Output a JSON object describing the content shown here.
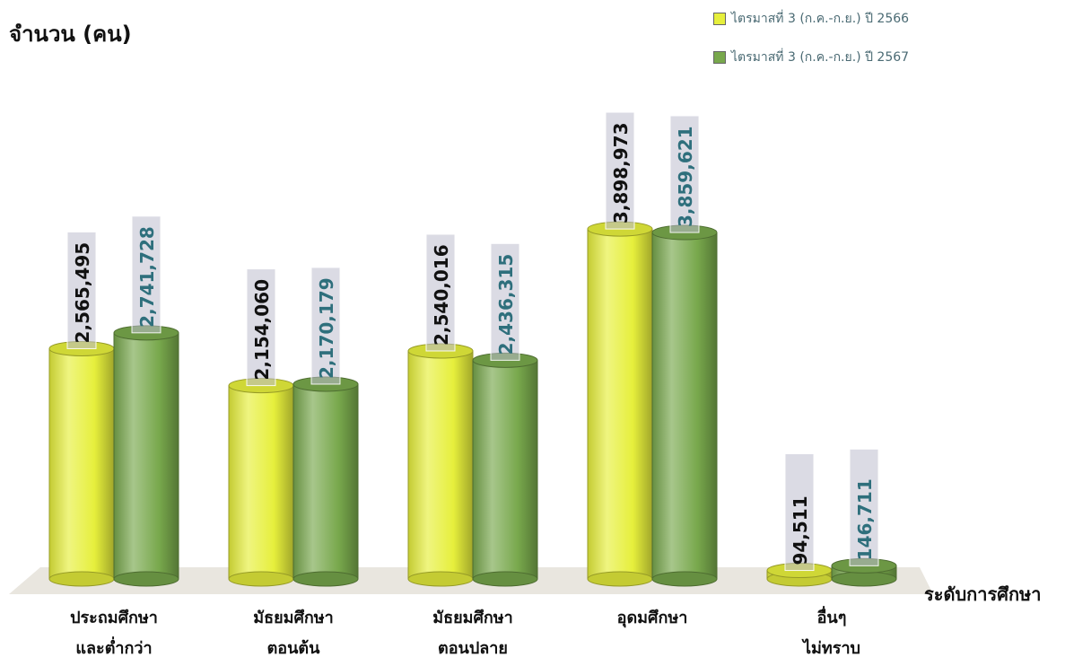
{
  "chart_data": {
    "type": "bar",
    "ylabel": "จำนวน (คน)",
    "xlabel": "ระดับการศึกษา",
    "categories": [
      [
        "ประถมศึกษา",
        "และต่ำกว่า"
      ],
      [
        "มัธยมศึกษา",
        "ตอนต้น"
      ],
      [
        "มัธยมศึกษา",
        "ตอนปลาย"
      ],
      [
        "อุดมศึกษา"
      ],
      [
        "อื่นๆ",
        "ไม่ทราบ"
      ]
    ],
    "series": [
      {
        "name": "ไตรมาสที่ 3 (ก.ค.-ก.ย.) ปี 2566",
        "color": "#e6ef3c",
        "label_color": "#111111",
        "values": [
          2565495,
          2154060,
          2540016,
          3898973,
          94511
        ],
        "labels": [
          "2,565,495",
          "2,154,060",
          "2,540,016",
          "3,898,973",
          "94,511"
        ]
      },
      {
        "name": "ไตรมาสที่ 3 (ก.ค.-ก.ย.) ปี 2567",
        "color": "#78a84c",
        "label_color": "#2e6f7c",
        "values": [
          2741728,
          2170179,
          2436315,
          3859621,
          146711
        ],
        "labels": [
          "2,741,728",
          "2,170,179",
          "2,436,315",
          "3,859,621",
          "146,711"
        ]
      }
    ],
    "ylim": [
      0,
      4000000
    ],
    "grid": false,
    "legend": "top-right"
  }
}
